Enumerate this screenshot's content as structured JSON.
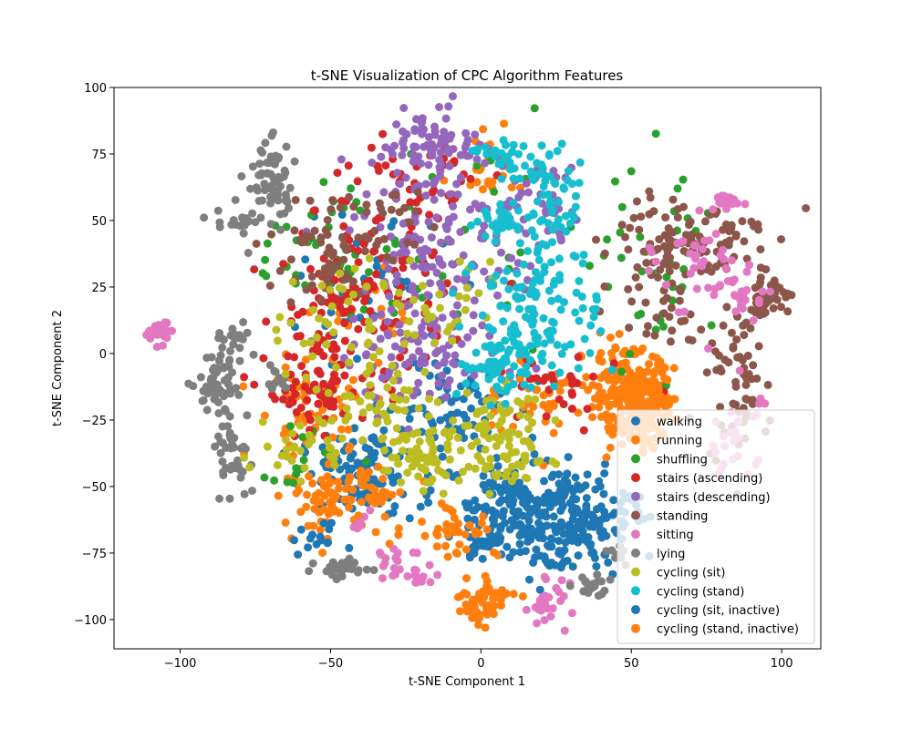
{
  "chart_data": {
    "type": "scatter",
    "title": "t-SNE Visualization of CPC Algorithm Features",
    "xlabel": "t-SNE Component 1",
    "ylabel": "t-SNE Component 2",
    "xlim": [
      -122,
      113
    ],
    "ylim": [
      -111,
      100
    ],
    "xticks": [
      -100,
      -50,
      0,
      50,
      100
    ],
    "xtick_labels": [
      "−100",
      "−50",
      "0",
      "50",
      "100"
    ],
    "yticks": [
      -100,
      -75,
      -50,
      -25,
      0,
      25,
      50,
      75,
      100
    ],
    "ytick_labels": [
      "−100",
      "−75",
      "−50",
      "−25",
      "0",
      "25",
      "50",
      "75",
      "100"
    ],
    "grid": false,
    "legend_position": "lower-right",
    "series": [
      {
        "name": "walking",
        "color": "#1f77b4",
        "clusters": [
          {
            "cx": -40,
            "cy": -45,
            "sx": 10,
            "sy": 8,
            "n": 110
          },
          {
            "cx": 15,
            "cy": -55,
            "sx": 10,
            "sy": 8,
            "n": 140
          },
          {
            "cx": 30,
            "cy": -65,
            "sx": 10,
            "sy": 10,
            "n": 110
          },
          {
            "cx": -10,
            "cy": -20,
            "sx": 10,
            "sy": 10,
            "n": 70
          },
          {
            "cx": 0,
            "cy": -70,
            "sx": 5,
            "sy": 5,
            "n": 40
          },
          {
            "cx": -35,
            "cy": 25,
            "sx": 12,
            "sy": 12,
            "n": 45
          }
        ]
      },
      {
        "name": "running",
        "color": "#ff7f0e",
        "clusters": [
          {
            "cx": 50,
            "cy": -15,
            "sx": 7,
            "sy": 8,
            "n": 200
          },
          {
            "cx": -50,
            "cy": -55,
            "sx": 8,
            "sy": 6,
            "n": 60
          },
          {
            "cx": -55,
            "cy": -20,
            "sx": 10,
            "sy": 10,
            "n": 60
          },
          {
            "cx": 0,
            "cy": -95,
            "sx": 4,
            "sy": 4,
            "n": 40
          },
          {
            "cx": -10,
            "cy": -65,
            "sx": 8,
            "sy": 6,
            "n": 40
          },
          {
            "cx": 20,
            "cy": -15,
            "sx": 10,
            "sy": 8,
            "n": 50
          },
          {
            "cx": 5,
            "cy": 70,
            "sx": 8,
            "sy": 6,
            "n": 25
          },
          {
            "cx": -30,
            "cy": 15,
            "sx": 10,
            "sy": 8,
            "n": 25
          }
        ]
      },
      {
        "name": "shuffling",
        "color": "#2ca02c",
        "clusters": [
          {
            "cx": -50,
            "cy": 35,
            "sx": 14,
            "sy": 14,
            "n": 50
          },
          {
            "cx": 60,
            "cy": 30,
            "sx": 10,
            "sy": 20,
            "n": 40
          },
          {
            "cx": -10,
            "cy": 50,
            "sx": 15,
            "sy": 20,
            "n": 25
          },
          {
            "cx": -60,
            "cy": -40,
            "sx": 8,
            "sy": 8,
            "n": 15
          }
        ]
      },
      {
        "name": "stairs (ascending)",
        "color": "#d62728",
        "clusters": [
          {
            "cx": -40,
            "cy": 20,
            "sx": 14,
            "sy": 18,
            "n": 140
          },
          {
            "cx": -55,
            "cy": -15,
            "sx": 8,
            "sy": 8,
            "n": 60
          },
          {
            "cx": -20,
            "cy": 65,
            "sx": 12,
            "sy": 10,
            "n": 40
          },
          {
            "cx": 25,
            "cy": -15,
            "sx": 10,
            "sy": 8,
            "n": 30
          }
        ]
      },
      {
        "name": "stairs (descending)",
        "color": "#9467bd",
        "clusters": [
          {
            "cx": -15,
            "cy": 40,
            "sx": 14,
            "sy": 22,
            "n": 180
          },
          {
            "cx": -15,
            "cy": 80,
            "sx": 8,
            "sy": 5,
            "n": 60
          },
          {
            "cx": -20,
            "cy": -5,
            "sx": 12,
            "sy": 8,
            "n": 60
          },
          {
            "cx": 20,
            "cy": 55,
            "sx": 10,
            "sy": 10,
            "n": 40
          }
        ]
      },
      {
        "name": "standing",
        "color": "#8c564b",
        "clusters": [
          {
            "cx": 95,
            "cy": 22,
            "sx": 4,
            "sy": 4,
            "n": 40
          },
          {
            "cx": 85,
            "cy": -10,
            "sx": 5,
            "sy": 15,
            "n": 70
          },
          {
            "cx": 60,
            "cy": 35,
            "sx": 8,
            "sy": 15,
            "n": 80
          },
          {
            "cx": 75,
            "cy": 45,
            "sx": 10,
            "sy": 8,
            "n": 60
          },
          {
            "cx": -55,
            "cy": 35,
            "sx": 10,
            "sy": 10,
            "n": 50
          },
          {
            "cx": -35,
            "cy": 50,
            "sx": 10,
            "sy": 8,
            "n": 30
          }
        ]
      },
      {
        "name": "sitting",
        "color": "#e377c2",
        "clusters": [
          {
            "cx": -107,
            "cy": 8,
            "sx": 2,
            "sy": 2,
            "n": 25
          },
          {
            "cx": 84,
            "cy": 57,
            "sx": 3,
            "sy": 2,
            "n": 25
          },
          {
            "cx": 86,
            "cy": 22,
            "sx": 4,
            "sy": 5,
            "n": 30
          },
          {
            "cx": 85,
            "cy": -30,
            "sx": 4,
            "sy": 10,
            "n": 30
          },
          {
            "cx": 22,
            "cy": -93,
            "sx": 4,
            "sy": 4,
            "n": 30
          },
          {
            "cx": -28,
            "cy": -78,
            "sx": 4,
            "sy": 4,
            "n": 20
          },
          {
            "cx": 70,
            "cy": 35,
            "sx": 6,
            "sy": 8,
            "n": 30
          },
          {
            "cx": -20,
            "cy": -85,
            "sx": 2,
            "sy": 2,
            "n": 10
          },
          {
            "cx": -40,
            "cy": -63,
            "sx": 2,
            "sy": 3,
            "n": 8
          }
        ]
      },
      {
        "name": "lying",
        "color": "#7f7f7f",
        "clusters": [
          {
            "cx": -70,
            "cy": 65,
            "sx": 4,
            "sy": 8,
            "n": 60
          },
          {
            "cx": -80,
            "cy": 50,
            "sx": 4,
            "sy": 3,
            "n": 20
          },
          {
            "cx": -85,
            "cy": -5,
            "sx": 4,
            "sy": 10,
            "n": 60
          },
          {
            "cx": -83,
            "cy": -38,
            "sx": 3,
            "sy": 6,
            "n": 40
          },
          {
            "cx": -46,
            "cy": -81,
            "sx": 4,
            "sy": 2,
            "n": 40
          },
          {
            "cx": 37,
            "cy": -87,
            "sx": 4,
            "sy": 2,
            "n": 20
          },
          {
            "cx": -90,
            "cy": -14,
            "sx": 3,
            "sy": 2,
            "n": 20
          },
          {
            "cx": -68,
            "cy": -10,
            "sx": 2,
            "sy": 3,
            "n": 10
          },
          {
            "cx": 45,
            "cy": -75,
            "sx": 2,
            "sy": 2,
            "n": 8
          }
        ]
      },
      {
        "name": "cycling (sit)",
        "color": "#bcbd22",
        "clusters": [
          {
            "cx": -20,
            "cy": -40,
            "sx": 7,
            "sy": 6,
            "n": 60
          },
          {
            "cx": 5,
            "cy": -25,
            "sx": 8,
            "sy": 6,
            "n": 50
          },
          {
            "cx": -35,
            "cy": -20,
            "sx": 8,
            "sy": 6,
            "n": 40
          },
          {
            "cx": -45,
            "cy": 10,
            "sx": 10,
            "sy": 15,
            "n": 50
          },
          {
            "cx": 10,
            "cy": -40,
            "sx": 8,
            "sy": 5,
            "n": 40
          },
          {
            "cx": -60,
            "cy": -35,
            "sx": 8,
            "sy": 6,
            "n": 30
          },
          {
            "cx": -10,
            "cy": 20,
            "sx": 10,
            "sy": 10,
            "n": 30
          }
        ]
      },
      {
        "name": "cycling (stand)",
        "color": "#17becf",
        "clusters": [
          {
            "cx": 20,
            "cy": 20,
            "sx": 10,
            "sy": 15,
            "n": 140
          },
          {
            "cx": 5,
            "cy": -5,
            "sx": 6,
            "sy": 6,
            "n": 60
          },
          {
            "cx": 22,
            "cy": 60,
            "sx": 7,
            "sy": 10,
            "n": 60
          },
          {
            "cx": 5,
            "cy": 75,
            "sx": 5,
            "sy": 3,
            "n": 20
          },
          {
            "cx": 5,
            "cy": 50,
            "sx": 4,
            "sy": 3,
            "n": 20
          }
        ]
      },
      {
        "name": "cycling (sit, inactive)",
        "color": "#1f77b4",
        "clusters": [
          {
            "cx": 25,
            "cy": -70,
            "sx": 8,
            "sy": 8,
            "n": 60
          },
          {
            "cx": 45,
            "cy": -60,
            "sx": 4,
            "sy": 5,
            "n": 20
          },
          {
            "cx": -55,
            "cy": -70,
            "sx": 4,
            "sy": 3,
            "n": 15
          }
        ]
      },
      {
        "name": "cycling (stand, inactive)",
        "color": "#ff7f0e",
        "clusters": [
          {
            "cx": 52,
            "cy": -22,
            "sx": 5,
            "sy": 6,
            "n": 80
          },
          {
            "cx": 5,
            "cy": -90,
            "sx": 4,
            "sy": 3,
            "n": 20
          },
          {
            "cx": -40,
            "cy": -52,
            "sx": 6,
            "sy": 5,
            "n": 30
          },
          {
            "cx": 55,
            "cy": -30,
            "sx": 3,
            "sy": 3,
            "n": 15
          }
        ]
      }
    ]
  }
}
